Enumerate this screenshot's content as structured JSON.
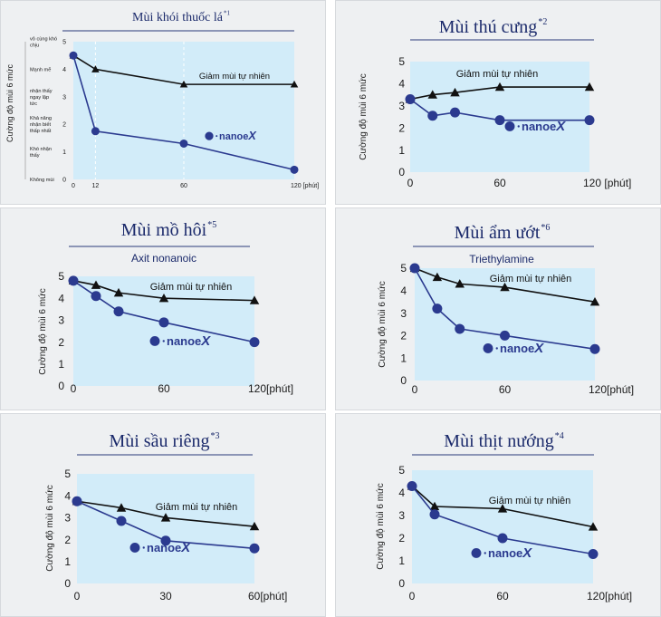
{
  "colors": {
    "plot_bg": "#d2ecf9",
    "nanoe": "#2b3a8f",
    "natural": "#111111",
    "title": "#1b2a6b"
  },
  "chart_data": [
    {
      "type": "line",
      "title": "Mùi khói thuốc lá",
      "title_sup": "*1",
      "subtitle": "",
      "ylabel": "Cường độ mùi 6 mức",
      "xlabel": "",
      "x_ticks": [
        "0",
        "12",
        "60",
        "120 [phút]"
      ],
      "x_tick_values": [
        0,
        12,
        60,
        120
      ],
      "y_ticks": [
        "0",
        "1",
        "2",
        "3",
        "4",
        "5"
      ],
      "y_categories": [
        "Không mùi",
        "Khó nhận thấy",
        "Khả năng nhận biết thấp nhất",
        "nhận thấy ngay lập tức",
        "Mạnh mẽ",
        "vô cùng khó chịu"
      ],
      "xlim": [
        0,
        120
      ],
      "ylim": [
        0,
        5
      ],
      "grid": "vertical-dashed",
      "series": [
        {
          "name": "Giảm mùi tự nhiên",
          "marker": "triangle",
          "x": [
            0,
            12,
            60,
            120
          ],
          "values": [
            4.5,
            4.0,
            3.45,
            3.45
          ]
        },
        {
          "name": "nanoeX",
          "marker": "circle",
          "x": [
            0,
            12,
            60,
            120
          ],
          "values": [
            4.5,
            1.75,
            1.3,
            0.35
          ]
        }
      ],
      "annotation": "Giảm mùi tự nhiên",
      "logo": "nanoeX",
      "logo_text": "nanoe",
      "logo_x": "X"
    },
    {
      "type": "line",
      "title": "Mùi thú cưng",
      "title_sup": "*2",
      "subtitle": "",
      "ylabel": "Cường độ mùi 6 mức",
      "xlabel": "",
      "x_ticks": [
        "0",
        "60",
        "120 [phút]"
      ],
      "x_tick_values": [
        0,
        60,
        120
      ],
      "y_ticks": [
        "0",
        "1",
        "2",
        "3",
        "4",
        "5"
      ],
      "xlim": [
        0,
        120
      ],
      "ylim": [
        0,
        5
      ],
      "series": [
        {
          "name": "Giảm mùi tự nhiên",
          "marker": "triangle",
          "x": [
            0,
            15,
            30,
            60,
            120
          ],
          "values": [
            3.3,
            3.5,
            3.6,
            3.85,
            3.85
          ]
        },
        {
          "name": "nanoeX",
          "marker": "circle",
          "x": [
            0,
            15,
            30,
            60,
            120
          ],
          "values": [
            3.3,
            2.55,
            2.7,
            2.35,
            2.35
          ]
        }
      ],
      "annotation": "Giảm mùi tự nhiên",
      "logo": "nanoeX",
      "logo_text": "nanoe",
      "logo_x": "X"
    },
    {
      "type": "line",
      "title": "Mùi mồ hôi",
      "title_sup": "*5",
      "subtitle": "Axit nonanoic",
      "ylabel": "Cường độ mùi 6 mức",
      "xlabel": "",
      "x_ticks": [
        "0",
        "60",
        "120[phút]"
      ],
      "x_tick_values": [
        0,
        60,
        120
      ],
      "y_ticks": [
        "0",
        "1",
        "2",
        "3",
        "4",
        "5"
      ],
      "xlim": [
        0,
        120
      ],
      "ylim": [
        0,
        5
      ],
      "series": [
        {
          "name": "Giảm mùi tự nhiên",
          "marker": "triangle",
          "x": [
            0,
            15,
            30,
            60,
            120
          ],
          "values": [
            4.8,
            4.6,
            4.25,
            4.0,
            3.9
          ]
        },
        {
          "name": "nanoeX",
          "marker": "circle",
          "x": [
            0,
            15,
            30,
            60,
            120
          ],
          "values": [
            4.8,
            4.1,
            3.4,
            2.9,
            2.0
          ]
        }
      ],
      "annotation": "Giảm mùi tự nhiên",
      "logo": "nanoeX",
      "logo_text": "nanoe",
      "logo_x": "X"
    },
    {
      "type": "line",
      "title": "Mùi ẩm ướt",
      "title_sup": "*6",
      "subtitle": "Triethylamine",
      "ylabel": "Cường độ mùi 6 mức",
      "xlabel": "",
      "x_ticks": [
        "0",
        "60",
        "120[phút]"
      ],
      "x_tick_values": [
        0,
        60,
        120
      ],
      "y_ticks": [
        "0",
        "1",
        "2",
        "3",
        "4",
        "5"
      ],
      "xlim": [
        0,
        120
      ],
      "ylim": [
        0,
        5
      ],
      "series": [
        {
          "name": "Giảm mùi tự nhiên",
          "marker": "triangle",
          "x": [
            0,
            15,
            30,
            60,
            120
          ],
          "values": [
            5.0,
            4.6,
            4.3,
            4.15,
            3.5
          ]
        },
        {
          "name": "nanoeX",
          "marker": "circle",
          "x": [
            0,
            15,
            30,
            60,
            120
          ],
          "values": [
            5.0,
            3.2,
            2.3,
            2.0,
            1.4
          ]
        }
      ],
      "annotation": "Giảm mùi tự nhiên",
      "logo": "nanoeX",
      "logo_text": "nanoe",
      "logo_x": "X"
    },
    {
      "type": "line",
      "title": "Mùi sầu riêng",
      "title_sup": "*3",
      "subtitle": "",
      "ylabel": "Cường độ mùi 6 mức",
      "xlabel": "",
      "x_ticks": [
        "0",
        "30",
        "60[phút]"
      ],
      "x_tick_values": [
        0,
        30,
        60
      ],
      "y_ticks": [
        "0",
        "1",
        "2",
        "3",
        "4",
        "5"
      ],
      "xlim": [
        0,
        60
      ],
      "ylim": [
        0,
        5
      ],
      "series": [
        {
          "name": "Giảm mùi tự nhiên",
          "marker": "triangle",
          "x": [
            0,
            15,
            30,
            60
          ],
          "values": [
            3.75,
            3.45,
            3.0,
            2.6
          ]
        },
        {
          "name": "nanoeX",
          "marker": "circle",
          "x": [
            0,
            15,
            30,
            60
          ],
          "values": [
            3.75,
            2.85,
            1.95,
            1.6
          ]
        }
      ],
      "annotation": "Giảm mùi tự nhiên",
      "logo": "nanoeX",
      "logo_text": "nanoe",
      "logo_x": "X"
    },
    {
      "type": "line",
      "title": "Mùi thịt nướng",
      "title_sup": "*4",
      "subtitle": "",
      "ylabel": "Cường độ mùi 6 mức",
      "xlabel": "",
      "x_ticks": [
        "0",
        "60",
        "120[phút]"
      ],
      "x_tick_values": [
        0,
        60,
        120
      ],
      "y_ticks": [
        "0",
        "1",
        "2",
        "3",
        "4",
        "5"
      ],
      "xlim": [
        0,
        120
      ],
      "ylim": [
        0,
        5
      ],
      "series": [
        {
          "name": "Giảm mùi tự nhiên",
          "marker": "triangle",
          "x": [
            0,
            15,
            60,
            120
          ],
          "values": [
            4.3,
            3.4,
            3.3,
            2.5
          ]
        },
        {
          "name": "nanoeX",
          "marker": "circle",
          "x": [
            0,
            15,
            60,
            120
          ],
          "values": [
            4.3,
            3.05,
            2.0,
            1.3
          ]
        }
      ],
      "annotation": "Giảm mùi tự nhiên",
      "logo": "nanoeX",
      "logo_text": "nanoe",
      "logo_x": "X"
    }
  ]
}
